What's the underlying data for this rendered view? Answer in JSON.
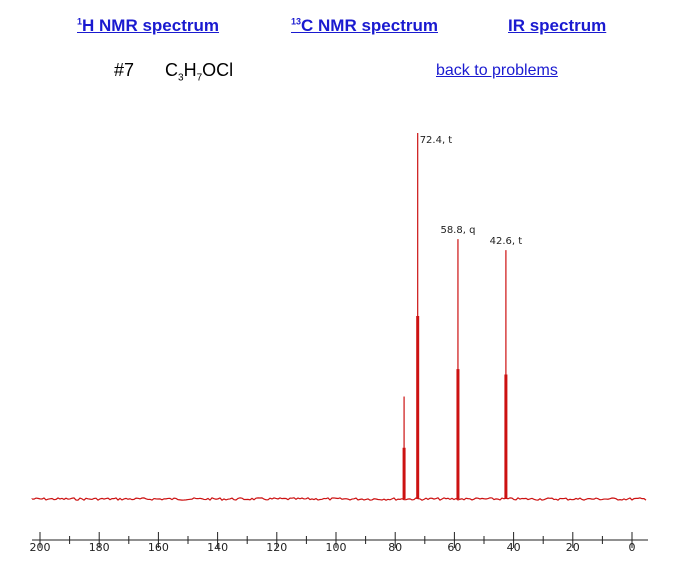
{
  "nav": {
    "h_nmr": {
      "sup": "1",
      "label": "H NMR spectrum"
    },
    "c_nmr": {
      "sup": "13",
      "label": "C NMR spectrum"
    },
    "ir": {
      "label": "IR spectrum"
    }
  },
  "problem": {
    "number": "#7",
    "formula": {
      "c": "C",
      "c_sub": "3",
      "h": "H",
      "h_sub": "7",
      "rest": "OCl"
    }
  },
  "back_link": "back to problems",
  "colors": {
    "spectrum": "#cc1111",
    "link": "#1a1ad0"
  },
  "chart_data": {
    "type": "spectrum",
    "xlim": [
      200,
      0
    ],
    "x_ticks": [
      "200",
      "180",
      "160",
      "140",
      "120",
      "100",
      "80",
      "60",
      "40",
      "20",
      "0"
    ],
    "peaks": [
      {
        "ppm": 77.0,
        "height": 0.28,
        "label": ""
      },
      {
        "ppm": 72.4,
        "height": 1.0,
        "label": "72.4, t"
      },
      {
        "ppm": 58.8,
        "height": 0.71,
        "label": "58.8, q"
      },
      {
        "ppm": 42.6,
        "height": 0.68,
        "label": "42.6, t"
      }
    ]
  }
}
